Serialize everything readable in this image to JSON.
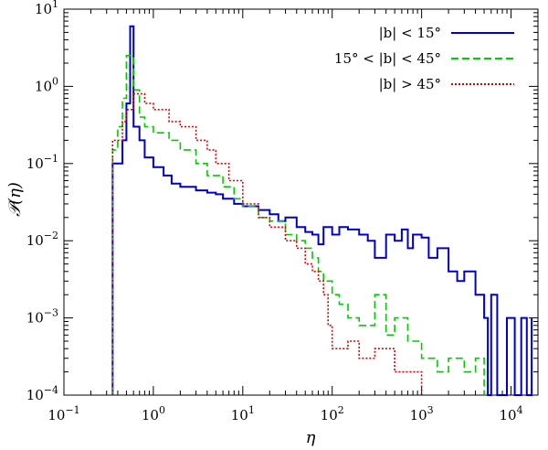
{
  "chart_data": {
    "type": "line",
    "xlabel": "η",
    "ylabel": "𝒫(η)",
    "xscale": "log",
    "yscale": "log",
    "xlim": [
      0.1,
      20000
    ],
    "ylim": [
      0.0001,
      10
    ],
    "x_ticks": [
      {
        "value": 0.1,
        "base": "10",
        "exp": "−1"
      },
      {
        "value": 1,
        "base": "10",
        "exp": "0"
      },
      {
        "value": 10,
        "base": "10",
        "exp": "1"
      },
      {
        "value": 100,
        "base": "10",
        "exp": "2"
      },
      {
        "value": 1000,
        "base": "10",
        "exp": "3"
      },
      {
        "value": 10000,
        "base": "10",
        "exp": "4"
      }
    ],
    "y_ticks": [
      {
        "value": 0.0001,
        "base": "10",
        "exp": "−4"
      },
      {
        "value": 0.001,
        "base": "10",
        "exp": "−3"
      },
      {
        "value": 0.01,
        "base": "10",
        "exp": "−2"
      },
      {
        "value": 0.1,
        "base": "10",
        "exp": "−1"
      },
      {
        "value": 1,
        "base": "10",
        "exp": "0"
      },
      {
        "value": 10,
        "base": "10",
        "exp": "1"
      }
    ],
    "legend_position": "top-right",
    "series": [
      {
        "name": "|b| < 15°",
        "color": "#0000cc",
        "dash": "solid",
        "points": [
          [
            0.35,
            0.0001
          ],
          [
            0.35,
            0.1
          ],
          [
            0.4,
            0.1
          ],
          [
            0.45,
            0.2
          ],
          [
            0.5,
            0.6
          ],
          [
            0.55,
            6.0
          ],
          [
            0.6,
            0.3
          ],
          [
            0.7,
            0.2
          ],
          [
            0.8,
            0.12
          ],
          [
            1.0,
            0.09
          ],
          [
            1.3,
            0.07
          ],
          [
            1.6,
            0.055
          ],
          [
            2.0,
            0.05
          ],
          [
            3.0,
            0.045
          ],
          [
            4.0,
            0.042
          ],
          [
            5.0,
            0.04
          ],
          [
            6.0,
            0.035
          ],
          [
            8.0,
            0.03
          ],
          [
            10,
            0.028
          ],
          [
            15,
            0.025
          ],
          [
            20,
            0.022
          ],
          [
            25,
            0.018
          ],
          [
            30,
            0.02
          ],
          [
            40,
            0.015
          ],
          [
            50,
            0.013
          ],
          [
            60,
            0.012
          ],
          [
            70,
            0.009
          ],
          [
            80,
            0.015
          ],
          [
            100,
            0.012
          ],
          [
            120,
            0.015
          ],
          [
            150,
            0.014
          ],
          [
            200,
            0.012
          ],
          [
            250,
            0.01
          ],
          [
            300,
            0.006
          ],
          [
            400,
            0.012
          ],
          [
            500,
            0.01
          ],
          [
            600,
            0.014
          ],
          [
            700,
            0.008
          ],
          [
            800,
            0.012
          ],
          [
            1000,
            0.011
          ],
          [
            1200,
            0.006
          ],
          [
            1500,
            0.008
          ],
          [
            2000,
            0.004
          ],
          [
            2500,
            0.003
          ],
          [
            3000,
            0.004
          ],
          [
            4000,
            0.002
          ],
          [
            5000,
            0.001
          ],
          [
            5500,
            0.0001
          ],
          [
            6000,
            0.002
          ],
          [
            7000,
            0.0001
          ],
          [
            9000,
            0.001
          ],
          [
            11000,
            0.0001
          ],
          [
            13000,
            0.001
          ],
          [
            15000,
            0.0001
          ],
          [
            17000,
            0.001
          ]
        ]
      },
      {
        "name": "15° < |b| < 45°",
        "color": "#00cc00",
        "dash": "8,4",
        "points": [
          [
            0.35,
            0.0001
          ],
          [
            0.35,
            0.15
          ],
          [
            0.4,
            0.3
          ],
          [
            0.45,
            0.7
          ],
          [
            0.5,
            2.5
          ],
          [
            0.6,
            0.9
          ],
          [
            0.7,
            0.4
          ],
          [
            0.8,
            0.3
          ],
          [
            1.0,
            0.25
          ],
          [
            1.5,
            0.2
          ],
          [
            2.0,
            0.15
          ],
          [
            3.0,
            0.1
          ],
          [
            4.0,
            0.07
          ],
          [
            6.0,
            0.05
          ],
          [
            8.0,
            0.035
          ],
          [
            10,
            0.028
          ],
          [
            15,
            0.02
          ],
          [
            20,
            0.018
          ],
          [
            30,
            0.012
          ],
          [
            40,
            0.01
          ],
          [
            50,
            0.008
          ],
          [
            60,
            0.006
          ],
          [
            70,
            0.004
          ],
          [
            80,
            0.003
          ],
          [
            100,
            0.002
          ],
          [
            120,
            0.0015
          ],
          [
            150,
            0.001
          ],
          [
            200,
            0.0008
          ],
          [
            300,
            0.002
          ],
          [
            400,
            0.0006
          ],
          [
            500,
            0.001
          ],
          [
            700,
            0.0005
          ],
          [
            1000,
            0.0003
          ],
          [
            1500,
            0.0002
          ],
          [
            2000,
            0.0003
          ],
          [
            3000,
            0.0002
          ],
          [
            4000,
            0.0003
          ],
          [
            5000,
            0.0001
          ]
        ]
      },
      {
        "name": "|b| > 45°",
        "color": "#e00000",
        "dash": "2,2",
        "points": [
          [
            0.35,
            0.0001
          ],
          [
            0.35,
            0.2
          ],
          [
            0.4,
            0.2
          ],
          [
            0.45,
            0.35
          ],
          [
            0.5,
            0.5
          ],
          [
            0.6,
            0.8
          ],
          [
            0.8,
            0.6
          ],
          [
            1.0,
            0.5
          ],
          [
            1.5,
            0.35
          ],
          [
            2.0,
            0.3
          ],
          [
            3.0,
            0.2
          ],
          [
            4.0,
            0.15
          ],
          [
            5.0,
            0.1
          ],
          [
            7.0,
            0.06
          ],
          [
            10,
            0.03
          ],
          [
            15,
            0.02
          ],
          [
            20,
            0.015
          ],
          [
            30,
            0.01
          ],
          [
            40,
            0.008
          ],
          [
            50,
            0.005
          ],
          [
            60,
            0.004
          ],
          [
            70,
            0.003
          ],
          [
            80,
            0.002
          ],
          [
            90,
            0.0008
          ],
          [
            100,
            0.0004
          ],
          [
            150,
            0.0005
          ],
          [
            200,
            0.0003
          ],
          [
            300,
            0.0004
          ],
          [
            500,
            0.0002
          ],
          [
            800,
            0.0002
          ],
          [
            1000,
            0.0001
          ]
        ]
      }
    ]
  }
}
